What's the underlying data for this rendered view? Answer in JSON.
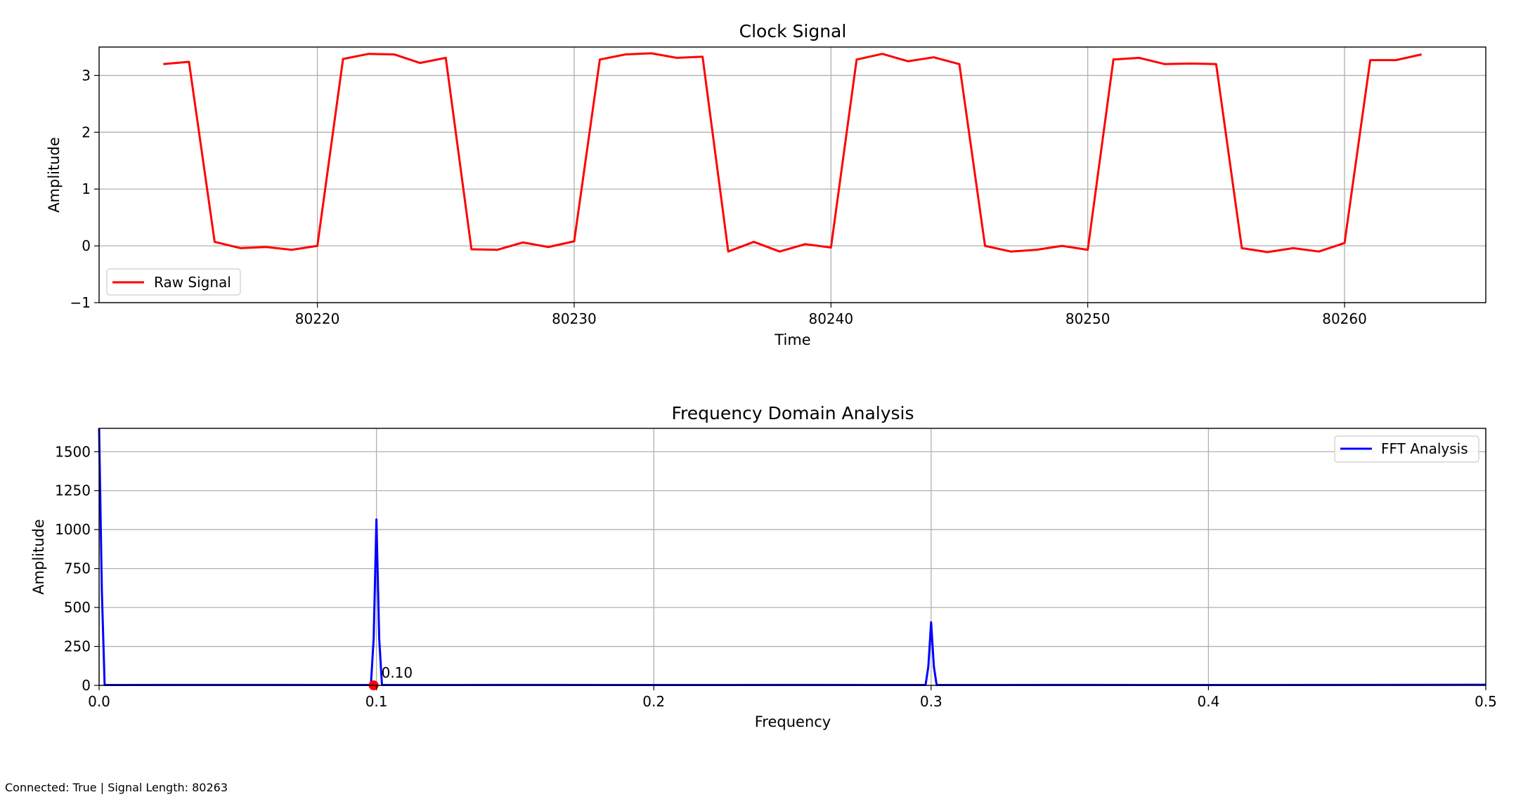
{
  "window": {
    "status_prefix_connected": "Connected: ",
    "connected": "True",
    "separator": " | ",
    "status_prefix_length": "Signal Length: ",
    "signal_length": "80263"
  },
  "colors": {
    "raw_signal": "#ff0000",
    "fft": "#0000ff",
    "peak_marker": "#ff0000",
    "grid": "#b0b0b0"
  },
  "chart_data": [
    {
      "type": "line",
      "title": "Clock Signal",
      "xlabel": "Time",
      "ylabel": "Amplitude",
      "xlim": [
        80211.5,
        80265.5
      ],
      "ylim": [
        -1,
        3.5
      ],
      "xticks": [
        80220,
        80230,
        80240,
        80250,
        80260
      ],
      "xtick_labels": [
        "80220",
        "80230",
        "80240",
        "80250",
        "80260"
      ],
      "yticks": [
        -1,
        0,
        1,
        2,
        3
      ],
      "ytick_labels": [
        "−1",
        "0",
        "1",
        "2",
        "3"
      ],
      "grid": true,
      "legend_position": "lower-left",
      "series": [
        {
          "name": "Raw Signal",
          "color": "#ff0000",
          "x": [
            80214,
            80215,
            80216,
            80217,
            80218,
            80219,
            80220,
            80221,
            80222,
            80223,
            80224,
            80225,
            80226,
            80227,
            80228,
            80229,
            80230,
            80231,
            80232,
            80233,
            80234,
            80235,
            80236,
            80237,
            80238,
            80239,
            80240,
            80241,
            80242,
            80243,
            80244,
            80245,
            80246,
            80247,
            80248,
            80249,
            80250,
            80251,
            80252,
            80253,
            80254,
            80255,
            80256,
            80257,
            80258,
            80259,
            80260,
            80261,
            80262,
            80263
          ],
          "values": [
            3.2,
            3.24,
            0.07,
            -0.04,
            -0.02,
            -0.07,
            0.0,
            3.29,
            3.38,
            3.37,
            3.22,
            3.31,
            -0.06,
            -0.07,
            0.06,
            -0.02,
            0.08,
            3.28,
            3.37,
            3.39,
            3.31,
            3.33,
            -0.1,
            0.07,
            -0.1,
            0.03,
            -0.03,
            3.28,
            3.38,
            3.25,
            3.32,
            3.2,
            0.0,
            -0.1,
            -0.07,
            0.0,
            -0.07,
            3.28,
            3.31,
            3.2,
            3.21,
            3.2,
            -0.04,
            -0.11,
            -0.04,
            -0.1,
            0.05,
            3.27,
            3.27,
            3.37
          ]
        }
      ]
    },
    {
      "type": "line",
      "title": "Frequency Domain Analysis",
      "xlabel": "Frequency",
      "ylabel": "Amplitude",
      "xlim": [
        0.0,
        0.5
      ],
      "ylim": [
        0,
        1650
      ],
      "xticks": [
        0.0,
        0.1,
        0.2,
        0.3,
        0.4,
        0.5
      ],
      "xtick_labels": [
        "0.0",
        "0.1",
        "0.2",
        "0.3",
        "0.4",
        "0.5"
      ],
      "yticks": [
        0,
        250,
        500,
        750,
        1000,
        1250,
        1500
      ],
      "ytick_labels": [
        "0",
        "250",
        "500",
        "750",
        "1000",
        "1250",
        "1500"
      ],
      "grid": true,
      "legend_position": "upper-right",
      "series": [
        {
          "name": "FFT Analysis",
          "color": "#0000ff",
          "x": [
            0.0,
            0.001,
            0.002,
            0.05,
            0.098,
            0.099,
            0.1,
            0.101,
            0.102,
            0.15,
            0.2,
            0.25,
            0.298,
            0.299,
            0.3,
            0.301,
            0.302,
            0.35,
            0.4,
            0.45,
            0.5
          ],
          "values": [
            1650,
            600,
            2,
            3,
            2,
            300,
            1065,
            300,
            2,
            3,
            2,
            3,
            2,
            120,
            405,
            120,
            2,
            3,
            2,
            3,
            4
          ]
        }
      ],
      "annotations": [
        {
          "label": "0.10",
          "x": 0.1,
          "y": 0,
          "marker_color": "#ff0000"
        }
      ]
    }
  ]
}
